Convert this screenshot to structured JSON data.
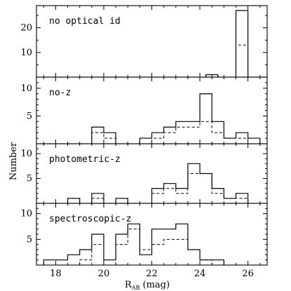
{
  "chart_data": {
    "type": "bar",
    "shared_x": {
      "label_main": "R",
      "label_sub": "AB",
      "label_unit": "(mag)",
      "lim": [
        17.2,
        26.8
      ],
      "ticks": [
        18,
        20,
        22,
        24,
        26
      ],
      "minor_step": 0.5
    },
    "ylabel": "Number",
    "bin_width": 0.5,
    "panels": [
      {
        "label": "no optical id",
        "ylim": [
          0,
          29
        ],
        "ticks": [
          10,
          20
        ],
        "minor_step": 5,
        "solid": [
          {
            "x": 24.5,
            "y": 1
          },
          {
            "x": 25.75,
            "y": 27
          }
        ],
        "dashed": [
          {
            "x": 24.5,
            "y": 1
          },
          {
            "x": 25.75,
            "y": 13
          }
        ]
      },
      {
        "label": "no-z",
        "ylim": [
          0,
          12
        ],
        "ticks": [
          5,
          10
        ],
        "minor_step": 1,
        "solid": [
          {
            "x": 19.75,
            "y": 3
          },
          {
            "x": 20.25,
            "y": 2
          },
          {
            "x": 21.75,
            "y": 1
          },
          {
            "x": 22.25,
            "y": 2
          },
          {
            "x": 22.75,
            "y": 3
          },
          {
            "x": 23.25,
            "y": 4
          },
          {
            "x": 23.75,
            "y": 4
          },
          {
            "x": 24.25,
            "y": 9
          },
          {
            "x": 24.75,
            "y": 4
          },
          {
            "x": 25.25,
            "y": 1
          },
          {
            "x": 25.75,
            "y": 2
          },
          {
            "x": 26.25,
            "y": 1
          }
        ],
        "dashed": [
          {
            "x": 19.75,
            "y": 2
          },
          {
            "x": 20.25,
            "y": 1
          },
          {
            "x": 21.75,
            "y": 1
          },
          {
            "x": 22.25,
            "y": 1
          },
          {
            "x": 22.75,
            "y": 2
          },
          {
            "x": 23.25,
            "y": 3
          },
          {
            "x": 23.75,
            "y": 3
          },
          {
            "x": 24.25,
            "y": 4
          },
          {
            "x": 24.75,
            "y": 2
          },
          {
            "x": 25.25,
            "y": 1
          },
          {
            "x": 25.75,
            "y": 1
          }
        ]
      },
      {
        "label": "photometric-z",
        "ylim": [
          0,
          12
        ],
        "ticks": [
          5,
          10
        ],
        "minor_step": 1,
        "solid": [
          {
            "x": 18.75,
            "y": 1
          },
          {
            "x": 19.75,
            "y": 2
          },
          {
            "x": 20.75,
            "y": 1
          },
          {
            "x": 22.25,
            "y": 3
          },
          {
            "x": 22.75,
            "y": 4
          },
          {
            "x": 23.25,
            "y": 3
          },
          {
            "x": 23.75,
            "y": 8
          },
          {
            "x": 24.25,
            "y": 6
          },
          {
            "x": 24.75,
            "y": 3
          },
          {
            "x": 25.25,
            "y": 1
          },
          {
            "x": 25.75,
            "y": 2
          }
        ],
        "dashed": [
          {
            "x": 18.75,
            "y": 1
          },
          {
            "x": 19.75,
            "y": 1
          },
          {
            "x": 20.75,
            "y": 1
          },
          {
            "x": 22.25,
            "y": 2
          },
          {
            "x": 22.75,
            "y": 3
          },
          {
            "x": 23.25,
            "y": 2
          },
          {
            "x": 23.75,
            "y": 6
          },
          {
            "x": 24.25,
            "y": 6
          },
          {
            "x": 24.75,
            "y": 2
          },
          {
            "x": 25.25,
            "y": 1
          },
          {
            "x": 25.75,
            "y": 1
          }
        ]
      },
      {
        "label": "spectroscopic-z",
        "ylim": [
          0,
          12
        ],
        "ticks": [
          5,
          10
        ],
        "minor_step": 1,
        "solid": [
          {
            "x": 17.75,
            "y": 1
          },
          {
            "x": 18.25,
            "y": 1
          },
          {
            "x": 18.75,
            "y": 2
          },
          {
            "x": 19.25,
            "y": 3
          },
          {
            "x": 19.75,
            "y": 6
          },
          {
            "x": 20.25,
            "y": 1
          },
          {
            "x": 20.75,
            "y": 6
          },
          {
            "x": 21.25,
            "y": 8
          },
          {
            "x": 21.75,
            "y": 2
          },
          {
            "x": 22.25,
            "y": 7
          },
          {
            "x": 22.75,
            "y": 7
          },
          {
            "x": 23.25,
            "y": 8
          },
          {
            "x": 23.75,
            "y": 3
          },
          {
            "x": 24.25,
            "y": 1
          },
          {
            "x": 24.75,
            "y": 1
          }
        ],
        "dashed": [
          {
            "x": 19.25,
            "y": 1
          },
          {
            "x": 19.75,
            "y": 4
          },
          {
            "x": 20.75,
            "y": 4
          },
          {
            "x": 21.25,
            "y": 7
          },
          {
            "x": 21.75,
            "y": 3
          },
          {
            "x": 22.25,
            "y": 4
          },
          {
            "x": 22.75,
            "y": 5
          },
          {
            "x": 23.25,
            "y": 5
          },
          {
            "x": 23.75,
            "y": 3
          },
          {
            "x": 24.25,
            "y": 1
          }
        ]
      }
    ]
  }
}
